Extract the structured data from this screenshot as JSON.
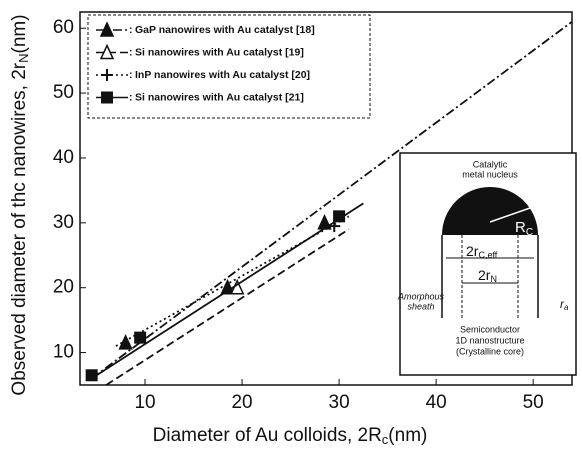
{
  "chart_data": {
    "type": "scatter",
    "x_label": [
      "Diameter of Au colloids, 2R",
      "c",
      "(nm)"
    ],
    "y_label": [
      "Observed diameter of thc nanowires, 2r",
      "N",
      "(nm)"
    ],
    "xlim": [
      3.3,
      54
    ],
    "ylim": [
      5,
      62.5
    ],
    "xticks": [
      10,
      20,
      30,
      40,
      50
    ],
    "yticks": [
      10,
      20,
      30,
      40,
      50,
      60
    ],
    "color": "#111111",
    "series": [
      {
        "name": "GaP nanowires with Au catalyst [18]",
        "marker": "triangle",
        "line_style": "dashdot",
        "x": [
          8,
          18.5,
          28.5
        ],
        "values": [
          11.5,
          20,
          30
        ],
        "fit": {
          "x": [
            4.5,
            54
          ],
          "values": [
            6,
            61
          ]
        }
      },
      {
        "name": "Si nanowires with Au catalyst [19]",
        "marker": "open-triangle",
        "line_style": "dashed",
        "x": [
          19.5
        ],
        "values": [
          20
        ],
        "fit": {
          "x": [
            6,
            31
          ],
          "values": [
            5,
            29
          ]
        }
      },
      {
        "name": "InP nanowires with Au catalyst [20]",
        "marker": "plus",
        "line_style": "dotted",
        "x": [
          29.5
        ],
        "values": [
          29.5
        ],
        "fit": {
          "x": [
            7,
            31
          ],
          "values": [
            11,
            31
          ]
        }
      },
      {
        "name": "Si nanowires with Au catalyst [21]",
        "marker": "square",
        "line_style": "solid",
        "x": [
          4.5,
          9.5,
          30
        ],
        "values": [
          6.5,
          12.3,
          31
        ],
        "fit": {
          "x": [
            4.5,
            32.5
          ],
          "values": [
            6,
            33
          ]
        }
      }
    ],
    "inset": {
      "nucleus": [
        "Catalytic",
        "metal nucleus"
      ],
      "radius": [
        "R",
        "C"
      ],
      "eff": [
        "2r",
        "C,eff"
      ],
      "core": [
        "2r",
        "N"
      ],
      "sheath": [
        "Amorphous",
        "sheath"
      ],
      "ra": [
        "r",
        "a"
      ],
      "semi": [
        "Semiconductor",
        "1D nanostructure",
        "(Crystalline core)"
      ]
    }
  }
}
